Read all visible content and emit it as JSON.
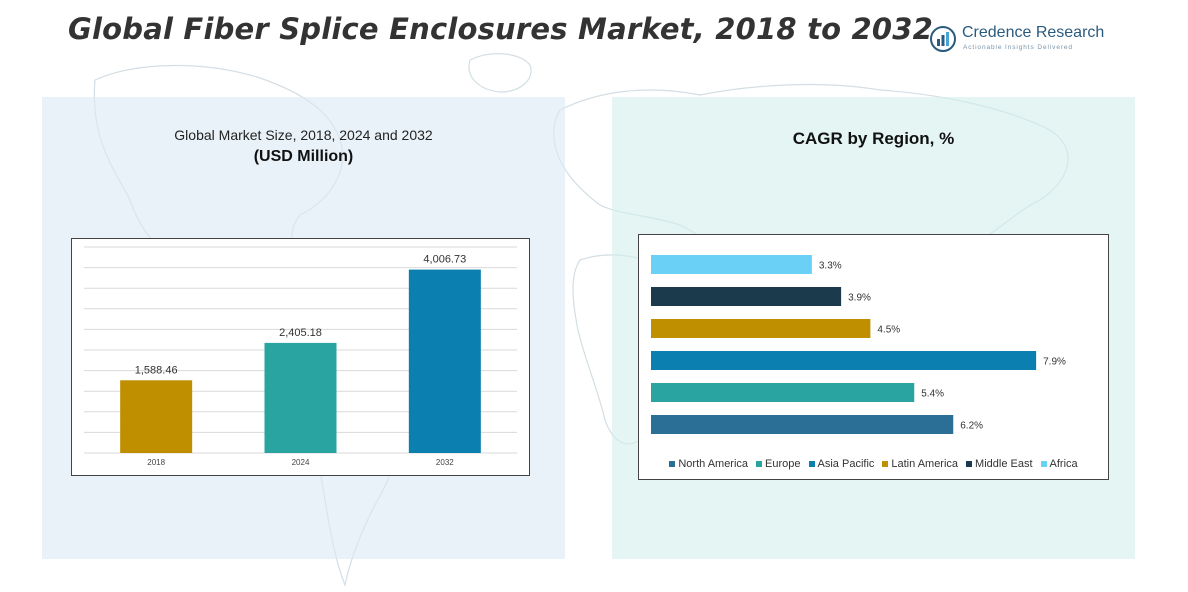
{
  "header": {
    "title": "Global Fiber Splice Enclosures Market, 2018 to 2032"
  },
  "logo": {
    "name": "Credence Research",
    "tagline": "Actionable Insights Delivered",
    "icon": "bar-chart-icon"
  },
  "left_panel": {
    "subtitle": "Global Market Size, 2018, 2024 and 2032",
    "unit": "(USD Million)"
  },
  "right_panel": {
    "title": "CAGR by Region, %"
  },
  "colors": {
    "gold": "#bf8f00",
    "teal": "#2aa4a0",
    "blue": "#0a7fb0",
    "navy": "#1b3a4b",
    "light_blue": "#6ad0f5",
    "steel": "#2b6f96"
  },
  "chart_data": [
    {
      "type": "bar",
      "title": "Global Market Size, 2018, 2024 and 2032",
      "ylabel": "USD Million",
      "categories": [
        "2018",
        "2024",
        "2032"
      ],
      "values": [
        1588.46,
        2405.18,
        4006.73
      ],
      "value_labels": [
        "1,588.46",
        "2,405.18",
        "4,006.73"
      ],
      "colors": [
        "#bf8f00",
        "#2aa4a0",
        "#0a7fb0"
      ],
      "ylim": [
        0,
        4500
      ],
      "grid": true
    },
    {
      "type": "bar",
      "orientation": "horizontal",
      "title": "CAGR by Region, %",
      "categories": [
        "Africa",
        "Middle East",
        "Latin America",
        "Asia Pacific",
        "Europe",
        "North America"
      ],
      "values": [
        3.3,
        3.9,
        4.5,
        7.9,
        5.4,
        6.2
      ],
      "value_labels": [
        "3.3%",
        "3.9%",
        "4.5%",
        "7.9%",
        "5.4%",
        "6.2%"
      ],
      "colors": [
        "#6ad0f5",
        "#1b3a4b",
        "#bf8f00",
        "#0a7fb0",
        "#2aa4a0",
        "#2b6f96"
      ],
      "xlim": [
        0,
        8
      ],
      "legend": [
        {
          "label": "North America",
          "color": "#2b6f96"
        },
        {
          "label": "Europe",
          "color": "#2aa4a0"
        },
        {
          "label": "Asia Pacific",
          "color": "#0a7fb0"
        },
        {
          "label": "Latin America",
          "color": "#bf8f00"
        },
        {
          "label": "Middle East",
          "color": "#1b3a4b"
        },
        {
          "label": "Africa",
          "color": "#6ad0f5"
        }
      ],
      "legend_position": "bottom"
    }
  ]
}
